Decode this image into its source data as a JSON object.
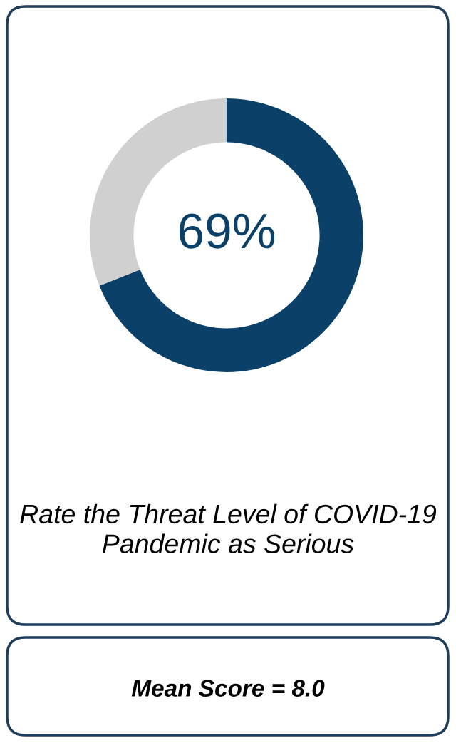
{
  "chart_data": {
    "type": "donut",
    "title": "Rate the Threat Level of COVID-19 Pandemic as Serious",
    "categories": [
      null,
      null
    ],
    "values": [
      69,
      31
    ],
    "colors": [
      "#0b4168",
      "#d0d0d0"
    ],
    "value_labels": [
      "69%",
      null
    ],
    "annotations": [
      "Mean Score = 8.0"
    ],
    "legend": false
  }
}
